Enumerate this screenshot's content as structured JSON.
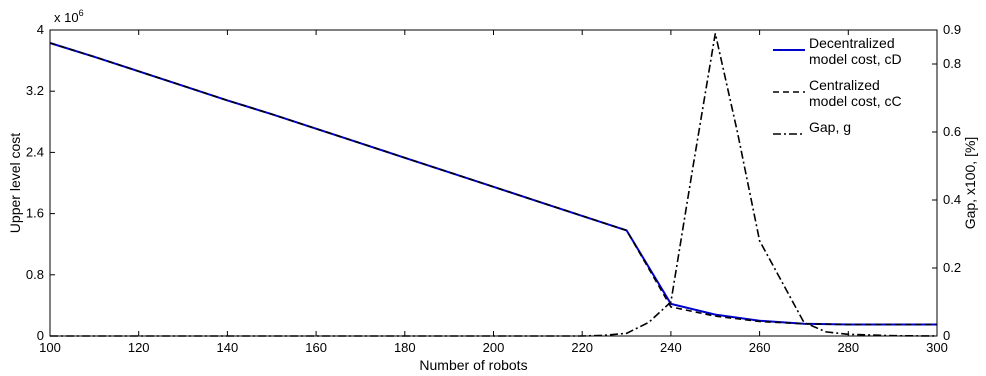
{
  "chart_data": {
    "type": "line",
    "xlabel": "Number of robots",
    "ylabel_left": "Upper level cost",
    "ylabel_right": "Gap, x100, [%]",
    "left_axis_multiplier": "x 10",
    "left_axis_multiplier_exp": "6",
    "xlim": [
      100,
      300
    ],
    "ylim_left": [
      0,
      4
    ],
    "ylim_right": [
      0,
      0.9
    ],
    "x_ticks": [
      "100",
      "120",
      "140",
      "160",
      "180",
      "200",
      "220",
      "240",
      "260",
      "280",
      "300"
    ],
    "y_left_ticks": [
      "0",
      "0.8",
      "1.6",
      "2.4",
      "3.2",
      "4"
    ],
    "y_right_ticks": [
      "0",
      "0.2",
      "0.4",
      "0.6",
      "0.8",
      "0.9"
    ],
    "legend_position": "top-right",
    "series": [
      {
        "name": "Decentralized model cost, cD",
        "axis": "left",
        "style": "solid",
        "color": "#0000cc",
        "x": [
          100,
          110,
          120,
          130,
          140,
          150,
          160,
          170,
          180,
          190,
          200,
          210,
          220,
          230,
          240,
          250,
          260,
          270,
          280,
          290,
          300
        ],
        "y": [
          3.83,
          3.65,
          3.46,
          3.27,
          3.08,
          2.9,
          2.71,
          2.52,
          2.33,
          2.14,
          1.95,
          1.76,
          1.57,
          1.38,
          0.42,
          0.28,
          0.2,
          0.16,
          0.15,
          0.15,
          0.15
        ]
      },
      {
        "name": "Centralized model cost, cC",
        "axis": "left",
        "style": "dashed",
        "color": "#000000",
        "x": [
          100,
          110,
          120,
          130,
          140,
          150,
          160,
          170,
          180,
          190,
          200,
          210,
          220,
          230,
          240,
          250,
          260,
          270,
          280,
          290,
          300
        ],
        "y": [
          3.83,
          3.65,
          3.46,
          3.27,
          3.08,
          2.9,
          2.71,
          2.52,
          2.33,
          2.14,
          1.95,
          1.76,
          1.57,
          1.38,
          0.38,
          0.26,
          0.19,
          0.16,
          0.15,
          0.15,
          0.15
        ]
      },
      {
        "name": "Gap, g",
        "axis": "right",
        "style": "dashdot",
        "color": "#000000",
        "x": [
          100,
          200,
          220,
          225,
          230,
          235,
          240,
          245,
          250,
          255,
          260,
          265,
          270,
          275,
          280,
          290,
          300
        ],
        "y": [
          0,
          0,
          0,
          0.002,
          0.008,
          0.04,
          0.1,
          0.5,
          0.89,
          0.6,
          0.28,
          0.16,
          0.04,
          0.012,
          0.005,
          0.001,
          0
        ]
      }
    ],
    "legend": {
      "entries": [
        {
          "lines": [
            "Decentralized",
            "model cost, cD"
          ],
          "series": 0
        },
        {
          "lines": [
            "Centralized",
            "model cost, cC"
          ],
          "series": 1
        },
        {
          "lines": [
            "Gap, g"
          ],
          "series": 2
        }
      ]
    }
  }
}
